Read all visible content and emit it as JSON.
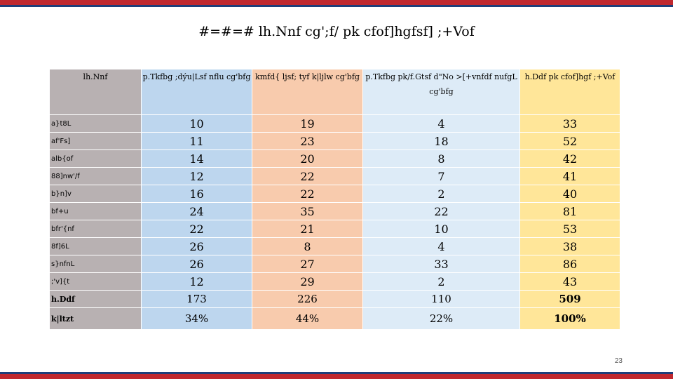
{
  "title": "#=#=# lh.Nnf cg';f/ pk cfof]hgfsf] ;+Vof",
  "table": {
    "headers": {
      "name": "lh.Nnf",
      "c1": "p.Tkfbg ;dýu|Lsf nflu cg'bfg",
      "c2": "kmfd{ ljsf; tyf k|ljlw cg'bfg",
      "c3_line1": "p.Tkfbg pk/f.Gtsf d\"No >[+vnfdf nufgL",
      "c3_line2": "cg'bfg",
      "c4": "h.Ddf pk cfof]hgf ;+Vof"
    },
    "rows": [
      {
        "name": "a}t8L",
        "c1": "10",
        "c2": "19",
        "c3": "4",
        "c4": "33"
      },
      {
        "name": "af'Fs]",
        "c1": "11",
        "c2": "23",
        "c3": "18",
        "c4": "52"
      },
      {
        "name": "alb{of",
        "c1": "14",
        "c2": "20",
        "c3": "8",
        "c4": "42"
      },
      {
        "name": "88]nw'/f",
        "c1": "12",
        "c2": "22",
        "c3": "7",
        "c4": "41"
      },
      {
        "name": "b}n]v",
        "c1": "16",
        "c2": "22",
        "c3": "2",
        "c4": "40"
      },
      {
        "name": "bf+u",
        "c1": "24",
        "c2": "35",
        "c3": "22",
        "c4": "81"
      },
      {
        "name": "bfr'{nf",
        "c1": "22",
        "c2": "21",
        "c3": "10",
        "c4": "53"
      },
      {
        "name": "8f]6L",
        "c1": "26",
        "c2": "8",
        "c3": "4",
        "c4": "38"
      },
      {
        "name": "s}nfnL",
        "c1": "26",
        "c2": "27",
        "c3": "33",
        "c4": "86"
      },
      {
        "name": ";'v]{t",
        "c1": "12",
        "c2": "29",
        "c3": "2",
        "c4": "43"
      }
    ],
    "total": {
      "name": "h.Ddf",
      "c1": "173",
      "c2": "226",
      "c3": "110",
      "c4": "509"
    },
    "percent": {
      "name": "k|ltzt",
      "c1": "34%",
      "c2": "44%",
      "c3": "22%",
      "c4": "100%"
    }
  },
  "page_number": "23",
  "colors": {
    "accent_red": "#c0282f",
    "accent_blue": "#1f3e7a"
  }
}
